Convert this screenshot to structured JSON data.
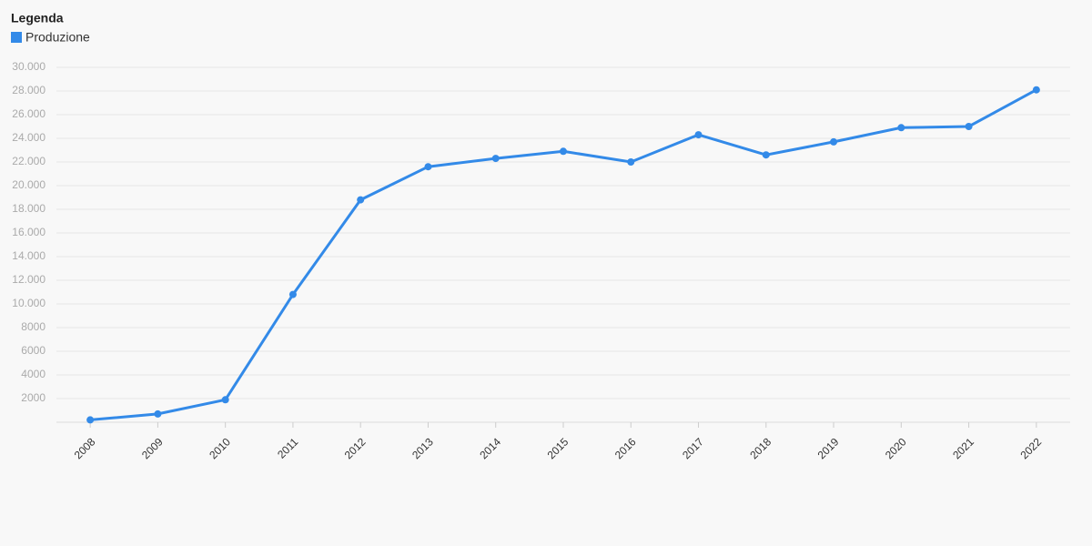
{
  "chart_data": {
    "type": "line",
    "legend_title": "Legenda",
    "legend": "top-left",
    "grid": true,
    "categories": [
      "2008",
      "2009",
      "2010",
      "2011",
      "2012",
      "2013",
      "2014",
      "2015",
      "2016",
      "2017",
      "2018",
      "2019",
      "2020",
      "2021",
      "2022"
    ],
    "series": [
      {
        "name": "Produzione",
        "color": "#338ae8",
        "values": [
          200,
          700,
          1900,
          10800,
          18800,
          21600,
          22300,
          22900,
          22000,
          24300,
          22600,
          23700,
          24900,
          25000,
          28100
        ]
      }
    ],
    "ylim": [
      0,
      30000
    ],
    "yticks": [
      2000,
      4000,
      6000,
      8000,
      {
        "value": 10000,
        "label": "10.000"
      },
      {
        "value": 12000,
        "label": "12.000"
      },
      {
        "value": 14000,
        "label": "14.000"
      },
      {
        "value": 16000,
        "label": "16.000"
      },
      {
        "value": 18000,
        "label": "18.000"
      },
      {
        "value": 20000,
        "label": "20.000"
      },
      {
        "value": 22000,
        "label": "22.000"
      },
      {
        "value": 24000,
        "label": "24.000"
      },
      {
        "value": 26000,
        "label": "26.000"
      },
      {
        "value": 28000,
        "label": "28.000"
      },
      {
        "value": 30000,
        "label": "30.000"
      }
    ]
  }
}
